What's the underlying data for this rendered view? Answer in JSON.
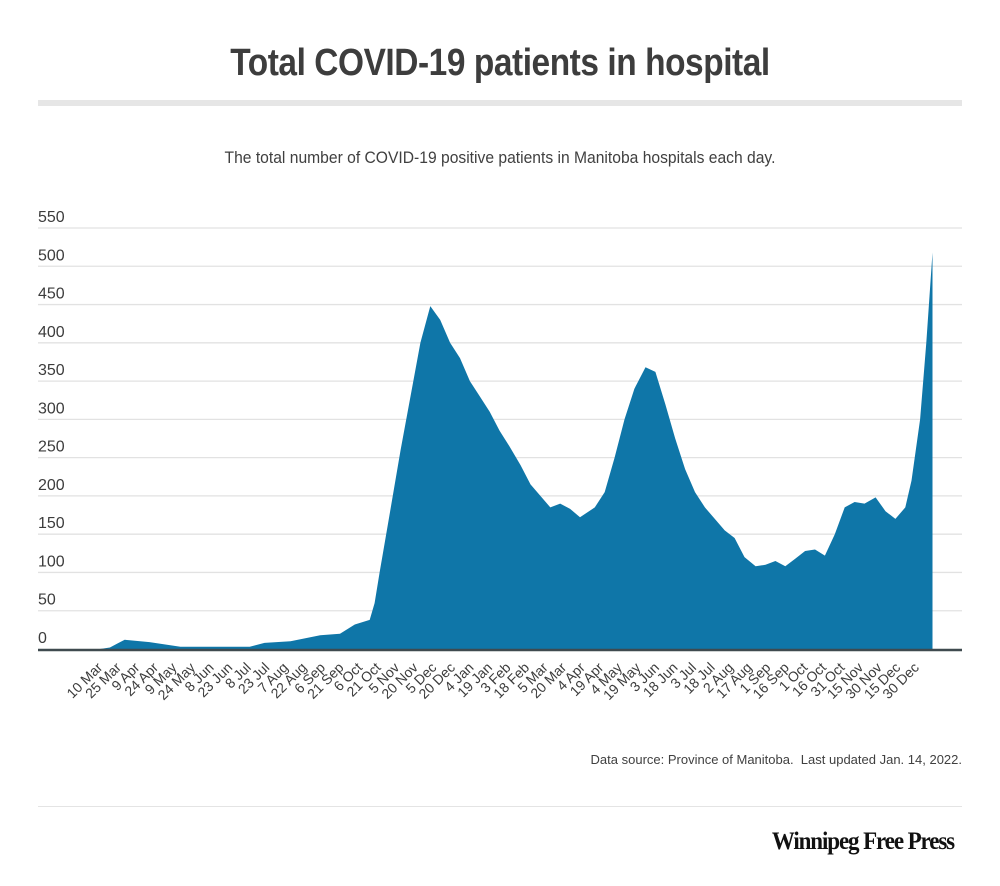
{
  "header": {
    "title": "Total COVID-19 patients in hospital",
    "subtitle": "The total number of COVID-19 positive patients in Manitoba hospitals each day."
  },
  "footer": {
    "source": "Data source: Province of Manitoba.  Last updated Jan. 14, 2022.",
    "logo_text": "Winnipeg Free Press"
  },
  "colors": {
    "area": "#0f76a8",
    "axis": "#3f4a4f",
    "grid": "#e2e2e2",
    "text": "#3c3c3c"
  },
  "chart_data": {
    "type": "area",
    "title": "Total COVID-19 patients in hospital",
    "subtitle": "The total number of COVID-19 positive patients in Manitoba hospitals each day.",
    "xlabel": "",
    "ylabel": "",
    "x_unit": "days since 10 Mar 2020",
    "ylim": [
      0,
      550
    ],
    "xlim": [
      0,
      680
    ],
    "grid": true,
    "legend": "none",
    "y_ticks": [
      0,
      50,
      100,
      150,
      200,
      250,
      300,
      350,
      400,
      450,
      500,
      550
    ],
    "x_tick_interval_days": 15,
    "x_tick_labels": [
      "10 Mar",
      "25 Mar",
      "9 Apr",
      "24 Apr",
      "9 May",
      "24 May",
      "8 Jun",
      "23 Jun",
      "8 Jul",
      "23 Jul",
      "7 Aug",
      "22 Aug",
      "6 Sep",
      "21 Sep",
      "6 Oct",
      "21 Oct",
      "5 Nov",
      "20 Nov",
      "5 Dec",
      "20 Dec",
      "4 Jan",
      "19 Jan",
      "3 Feb",
      "18 Feb",
      "5 Mar",
      "20 Mar",
      "4 Apr",
      "19 Apr",
      "4 May",
      "19 May",
      "3 Jun",
      "18 Jun",
      "3 Jul",
      "18 Jul",
      "2 Aug",
      "17 Aug",
      "1 Sep",
      "16 Sep",
      "1 Oct",
      "16 Oct",
      "31 Oct",
      "15 Nov",
      "30 Nov",
      "15 Dec",
      "30 Dec"
    ],
    "series": [
      {
        "name": "Patients in hospital",
        "x": [
          0,
          8,
          15,
          20,
          40,
          65,
          121,
          133,
          154,
          178,
          194,
          206,
          218,
          222,
          226,
          234,
          243,
          251,
          259,
          267,
          275,
          283,
          291,
          299,
          307,
          315,
          323,
          331,
          340,
          348,
          356,
          364,
          372,
          380,
          388,
          400,
          408,
          416,
          424,
          432,
          441,
          449,
          457,
          465,
          473,
          481,
          489,
          497,
          505,
          513,
          521,
          530,
          538,
          546,
          554,
          562,
          570,
          578,
          586,
          594,
          602,
          610,
          618,
          627,
          635,
          643,
          651,
          656,
          663,
          668,
          673
        ],
        "values": [
          0,
          2,
          8,
          12,
          9,
          3,
          3,
          8,
          10,
          18,
          20,
          32,
          38,
          60,
          100,
          175,
          260,
          330,
          400,
          448,
          430,
          400,
          380,
          350,
          330,
          310,
          285,
          265,
          240,
          215,
          200,
          185,
          190,
          183,
          172,
          185,
          205,
          250,
          300,
          340,
          368,
          362,
          320,
          275,
          235,
          205,
          185,
          170,
          155,
          145,
          120,
          108,
          110,
          115,
          108,
          118,
          128,
          130,
          122,
          150,
          185,
          192,
          190,
          198,
          180,
          170,
          185,
          220,
          300,
          400,
          518
        ]
      }
    ]
  }
}
